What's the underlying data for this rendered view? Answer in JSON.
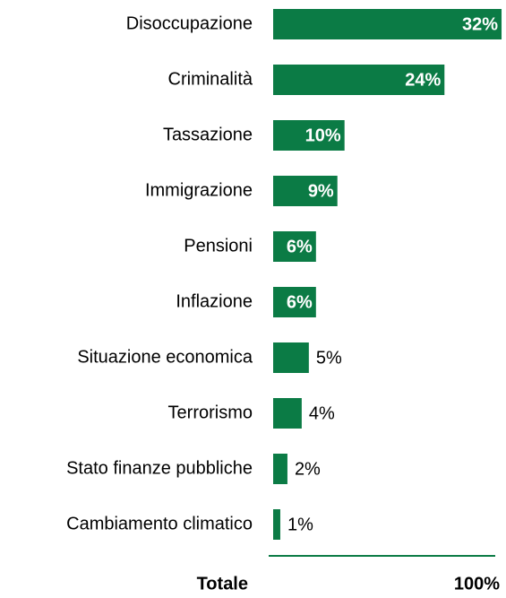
{
  "chart_data": {
    "type": "bar",
    "orientation": "horizontal",
    "categories": [
      "Disoccupazione",
      "Criminalità",
      "Tassazione",
      "Immigrazione",
      "Pensioni",
      "Inflazione",
      "Situazione economica",
      "Terrorismo",
      "Stato finanze pubbliche",
      "Cambiamento climatico"
    ],
    "values": [
      32,
      24,
      10,
      9,
      6,
      6,
      5,
      4,
      2,
      1
    ],
    "value_labels": [
      "32%",
      "24%",
      "10%",
      "9%",
      "6%",
      "6%",
      "5%",
      "4%",
      "2%",
      "1%"
    ],
    "color": "#0b7b45",
    "total_label": "Totale",
    "total_value_label": "100%"
  }
}
